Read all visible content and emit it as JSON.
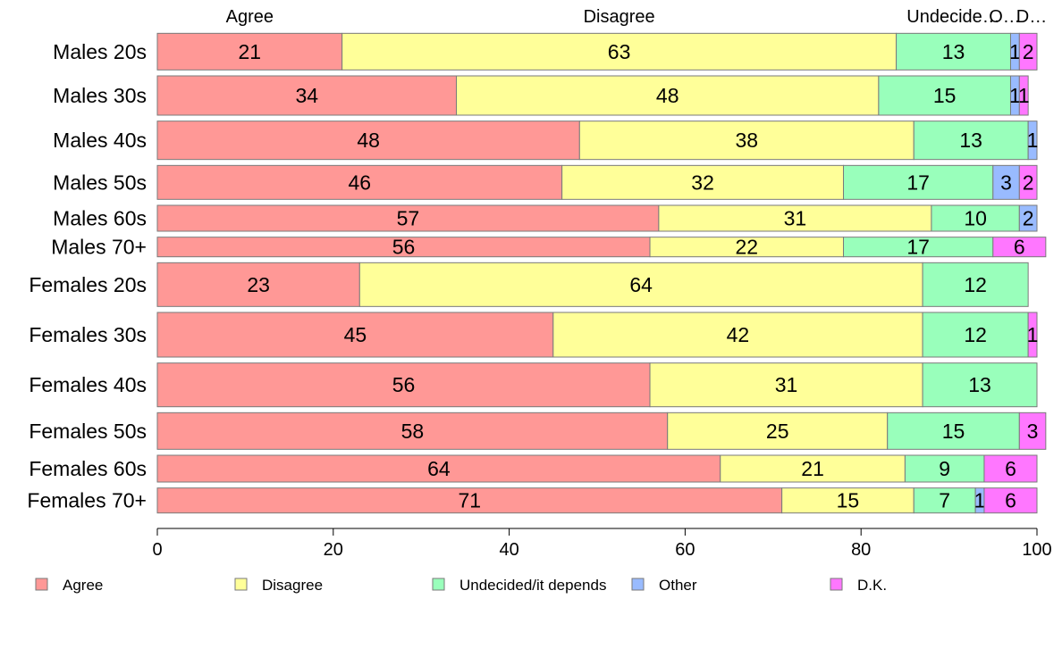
{
  "chart_data": {
    "type": "bar",
    "orientation": "horizontal",
    "stacked": true,
    "categories": [
      "Males 20s",
      "Males 30s",
      "Males 40s",
      "Males 50s",
      "Males 60s",
      "Males 70+",
      "Females 20s",
      "Females 30s",
      "Females 40s",
      "Females 50s",
      "Females 60s",
      "Females 70+"
    ],
    "category_widths": [
      41,
      44,
      43,
      38,
      29,
      22,
      49,
      50,
      49,
      41,
      30,
      28
    ],
    "series": [
      {
        "name": "Agree",
        "color": "#ff9896",
        "values": [
          21,
          34,
          48,
          46,
          57,
          56,
          23,
          45,
          56,
          58,
          64,
          71
        ]
      },
      {
        "name": "Disagree",
        "color": "#ffff99",
        "values": [
          63,
          48,
          38,
          32,
          31,
          22,
          64,
          42,
          31,
          25,
          21,
          15
        ]
      },
      {
        "name": "Undecided/it depends",
        "color": "#99ffbb",
        "values": [
          13,
          15,
          13,
          17,
          10,
          17,
          12,
          12,
          13,
          15,
          9,
          7
        ]
      },
      {
        "name": "Other",
        "color": "#99bbff",
        "values": [
          1,
          1,
          1,
          3,
          2,
          0,
          0,
          0,
          0,
          0,
          0,
          1
        ]
      },
      {
        "name": "D.K.",
        "color": "#ff77ff",
        "values": [
          2,
          1,
          0,
          2,
          0,
          6,
          0,
          1,
          0,
          3,
          6,
          6
        ]
      }
    ],
    "top_labels": [
      "Agree",
      "Disagree",
      "Undecide…",
      "O…",
      "D…"
    ],
    "xlim": [
      0,
      100
    ],
    "xticks": [
      0,
      20,
      40,
      60,
      80,
      100
    ],
    "legend_position": "bottom",
    "grid": false
  }
}
